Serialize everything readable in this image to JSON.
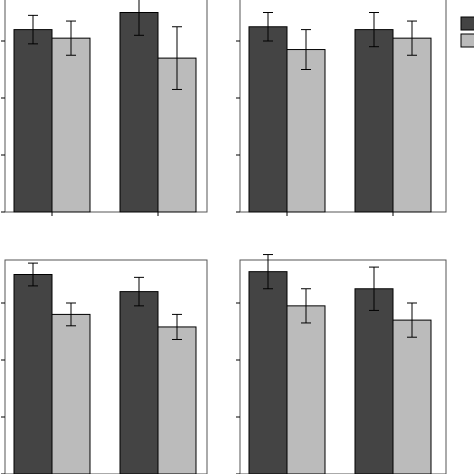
{
  "chart_data": [
    {
      "type": "bar",
      "categories": [
        "",
        ""
      ],
      "series": [
        {
          "values": [
            3.2,
            3.05
          ],
          "errors": [
            0.25,
            0.3
          ]
        },
        {
          "values": [
            3.5,
            2.7
          ],
          "errors": [
            0.4,
            0.55
          ]
        }
      ],
      "ylim": [
        0,
        4
      ],
      "grid": false
    },
    {
      "type": "bar",
      "categories": [
        "",
        ""
      ],
      "series": [
        {
          "values": [
            3.25,
            2.85
          ],
          "errors": [
            0.25,
            0.35
          ]
        },
        {
          "values": [
            3.2,
            3.05
          ],
          "errors": [
            0.3,
            0.3
          ]
        }
      ],
      "ylim": [
        0,
        4
      ],
      "grid": false
    },
    {
      "type": "bar",
      "categories": [
        "",
        ""
      ],
      "series": [
        {
          "values": [
            3.5,
            2.8
          ],
          "errors": [
            0.2,
            0.2
          ]
        },
        {
          "values": [
            3.2,
            2.58
          ],
          "errors": [
            0.25,
            0.22
          ]
        }
      ],
      "ylim": [
        0,
        4
      ],
      "grid": false
    },
    {
      "type": "bar",
      "categories": [
        "",
        ""
      ],
      "series": [
        {
          "values": [
            3.55,
            2.95
          ],
          "errors": [
            0.3,
            0.3
          ]
        },
        {
          "values": [
            3.25,
            2.7
          ],
          "errors": [
            0.38,
            0.3
          ]
        }
      ],
      "ylim": [
        0,
        4
      ],
      "grid": false
    }
  ],
  "legend": {
    "placement": "top-right"
  },
  "colors": {
    "series1": "#444444",
    "series2": "#bbbbbb",
    "axis": "#000000",
    "frame": "#555555"
  }
}
